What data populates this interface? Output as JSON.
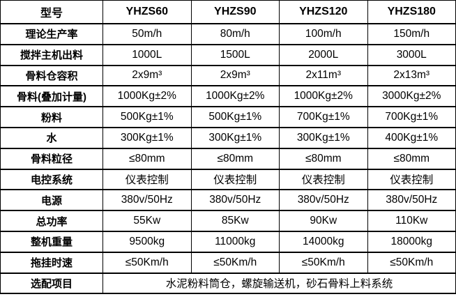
{
  "table": {
    "header": {
      "label": "型号",
      "models": [
        "YHZS60",
        "YHZS90",
        "YHZS120",
        "YHZS180"
      ]
    },
    "rows": [
      {
        "label": "理论生产率",
        "values": [
          "50m/h",
          "80m/h",
          "100m/h",
          "150m/h"
        ]
      },
      {
        "label": "搅拌主机出料",
        "values": [
          "1000L",
          "1500L",
          "2000L",
          "3000L"
        ]
      },
      {
        "label": "骨料仓容积",
        "values": [
          "2x9m³",
          "2x9m³",
          "2x11m³",
          "2x13m³"
        ]
      },
      {
        "label": "骨料(叠加计量)",
        "values": [
          "1000Kg±2%",
          "1000Kg±2%",
          "1000Kg±2%",
          "3000Kg±2%"
        ]
      },
      {
        "label": "粉料",
        "values": [
          "500Kg±1%",
          "500Kg±1%",
          "700Kg±1%",
          "700Kg±1%"
        ]
      },
      {
        "label": "水",
        "values": [
          "300Kg±1%",
          "300Kg±1%",
          "300Kg±1%",
          "400Kg±1%"
        ]
      },
      {
        "label": "骨料粒径",
        "values": [
          "≤80mm",
          "≤80mm",
          "≤80mm",
          "≤80mm"
        ]
      },
      {
        "label": "电控系统",
        "values": [
          "仪表控制",
          "仪表控制",
          "仪表控制",
          "仪表控制"
        ]
      },
      {
        "label": "电源",
        "values": [
          "380v/50Hz",
          "380v/50Hz",
          "380v/50Hz",
          "380v/50Hz"
        ]
      },
      {
        "label": "总功率",
        "values": [
          "55Kw",
          "85Kw",
          "90Kw",
          "110Kw"
        ]
      },
      {
        "label": "整机重量",
        "values": [
          "9500kg",
          "11000kg",
          "14000kg",
          "18000kg"
        ]
      },
      {
        "label": "拖挂时速",
        "values": [
          "≤50Km/h",
          "≤50Km/h",
          "≤50Km/h",
          "≤50Km/h"
        ]
      },
      {
        "label": "选配项目",
        "merged": "水泥粉料筒仓，螺旋输送机，砂石骨料上料系统"
      }
    ]
  },
  "colors": {
    "text": "#000000",
    "border": "#000000",
    "background": "#ffffff"
  }
}
